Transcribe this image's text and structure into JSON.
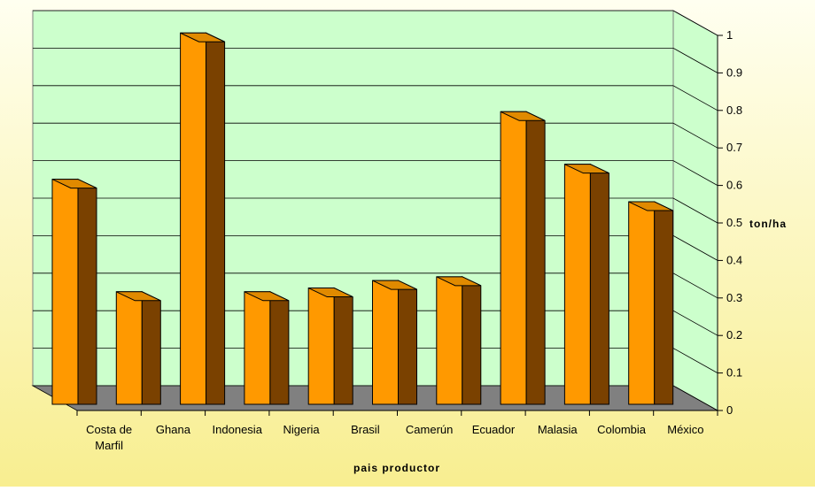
{
  "chart_data": {
    "type": "bar",
    "categories": [
      "Costa de Marfil",
      "Ghana",
      "Indonesia",
      "Nigeria",
      "Brasil",
      "Camerún",
      "Ecuador",
      "Malasia",
      "Colombia",
      "México"
    ],
    "category_label_lines": [
      [
        "Costa de",
        "Marfil"
      ],
      [
        "Ghana"
      ],
      [
        "Indonesia"
      ],
      [
        "Nigeria"
      ],
      [
        "Brasil"
      ],
      [
        "Camerún"
      ],
      [
        "Ecuador"
      ],
      [
        "Malasia"
      ],
      [
        "Colombia"
      ],
      [
        "México"
      ]
    ],
    "values": [
      0.6,
      0.3,
      0.99,
      0.3,
      0.31,
      0.33,
      0.34,
      0.78,
      0.64,
      0.54
    ],
    "xlabel": "pais productor",
    "ylabel": "ton/ha",
    "ylim": [
      0,
      1
    ],
    "yticks": [
      "0",
      "0.1",
      "0.2",
      "0.3",
      "0.4",
      "0.5",
      "0.6",
      "0.7",
      "0.8",
      "0.9",
      "1"
    ],
    "grid": true,
    "projection": "3d"
  },
  "colors": {
    "background_top": "#fffff0",
    "background_bottom": "#f8ee90",
    "wall": "#ccffcc",
    "floor": "#808080",
    "bar_front": "#ff9900",
    "bar_side": "#7a4100",
    "bar_top": "#e08a00",
    "outline": "#000000"
  }
}
